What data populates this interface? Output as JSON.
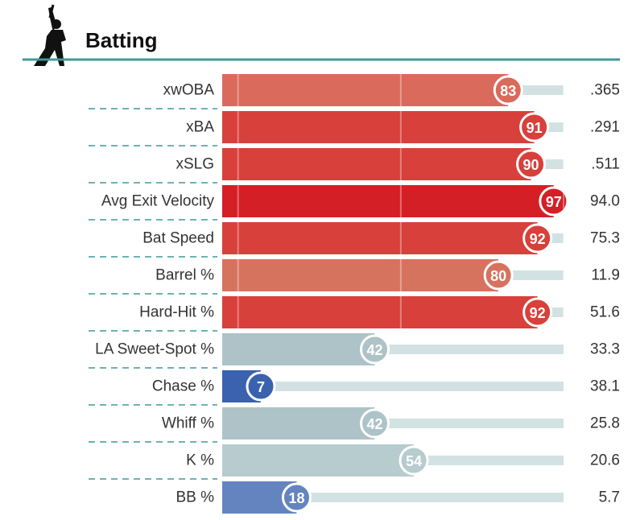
{
  "chart_data": {
    "type": "percentile-bar",
    "title": "Batting",
    "categories": [
      "xwOBA",
      "xBA",
      "xSLG",
      "Avg Exit Velocity",
      "Bat Speed",
      "Barrel %",
      "Hard-Hit %",
      "LA Sweet-Spot %",
      "Chase %",
      "Whiff %",
      "K %",
      "BB %"
    ],
    "values": [
      83,
      91,
      90,
      97,
      92,
      80,
      92,
      42,
      7,
      42,
      54,
      18
    ],
    "colors": [
      "#da6a5c",
      "#d8403b",
      "#d8403b",
      "#d41f27",
      "#d8403b",
      "#d6735f",
      "#d8403b",
      "#adc3c8",
      "#3a62ae",
      "#adc3c8",
      "#b6cccf",
      "#6384bf"
    ],
    "stats": [
      ".365",
      ".291",
      ".511",
      "94.0",
      "75.3",
      "11.9",
      "51.6",
      "33.3",
      "38.1",
      "25.8",
      "20.6",
      "5.7"
    ],
    "xlim": [
      0,
      100
    ],
    "xticks": [
      0,
      50,
      100
    ],
    "track_color": "#d2e2e2",
    "accent_color": "#3f9a96"
  }
}
